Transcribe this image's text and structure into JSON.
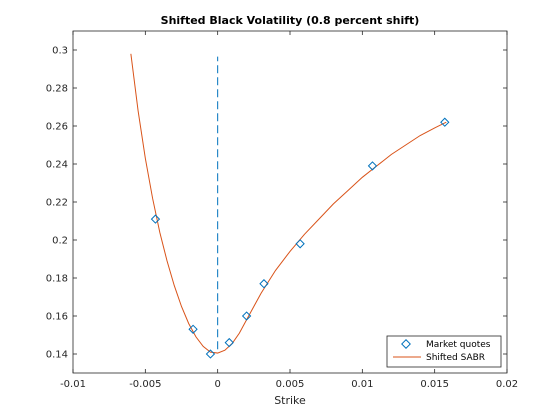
{
  "chart_data": {
    "type": "line",
    "title": "Shifted Black Volatility (0.8 percent shift)",
    "xlabel": "Strike",
    "ylabel": "",
    "xlim": [
      -0.01,
      0.02
    ],
    "ylim": [
      0.13,
      0.31
    ],
    "xticks": [
      -0.01,
      -0.005,
      0,
      0.005,
      0.01,
      0.015,
      0.02
    ],
    "xtick_labels": [
      "-0.01",
      "-0.005",
      "0",
      "0.005",
      "0.01",
      "0.015",
      "0.02"
    ],
    "yticks": [
      0.14,
      0.16,
      0.18,
      0.2,
      0.22,
      0.24,
      0.26,
      0.28,
      0.3
    ],
    "ytick_labels": [
      "0.14",
      "0.16",
      "0.18",
      "0.2",
      "0.22",
      "0.24",
      "0.26",
      "0.28",
      "0.3"
    ],
    "grid": false,
    "legend_position": "bottom-right",
    "series": [
      {
        "name": "Market quotes",
        "kind": "scatter",
        "marker": "diamond",
        "color": "#0072bd",
        "x": [
          -0.0043,
          -0.0017,
          -0.0005,
          0.0008,
          0.002,
          0.0032,
          0.0057,
          0.0107,
          0.0157
        ],
        "y": [
          0.211,
          0.153,
          0.14,
          0.146,
          0.16,
          0.177,
          0.198,
          0.239,
          0.262
        ]
      },
      {
        "name": "Shifted SABR",
        "kind": "line",
        "color": "#d95319",
        "x": [
          -0.006,
          -0.0055,
          -0.005,
          -0.0045,
          -0.004,
          -0.0035,
          -0.003,
          -0.0025,
          -0.002,
          -0.0015,
          -0.001,
          -0.0005,
          0.0,
          0.0005,
          0.001,
          0.0015,
          0.002,
          0.0025,
          0.003,
          0.004,
          0.005,
          0.006,
          0.007,
          0.008,
          0.009,
          0.01,
          0.011,
          0.012,
          0.013,
          0.014,
          0.015,
          0.0158
        ],
        "y": [
          0.298,
          0.268,
          0.243,
          0.222,
          0.204,
          0.189,
          0.176,
          0.165,
          0.156,
          0.149,
          0.144,
          0.141,
          0.1405,
          0.142,
          0.1455,
          0.151,
          0.158,
          0.165,
          0.172,
          0.184,
          0.194,
          0.203,
          0.211,
          0.219,
          0.226,
          0.233,
          0.239,
          0.245,
          0.25,
          0.255,
          0.259,
          0.262
        ]
      },
      {
        "name": "",
        "kind": "vline",
        "style": "dashed",
        "color": "#0072bd",
        "x": [
          0,
          0
        ],
        "y": [
          0.1425,
          0.2965
        ]
      }
    ]
  }
}
